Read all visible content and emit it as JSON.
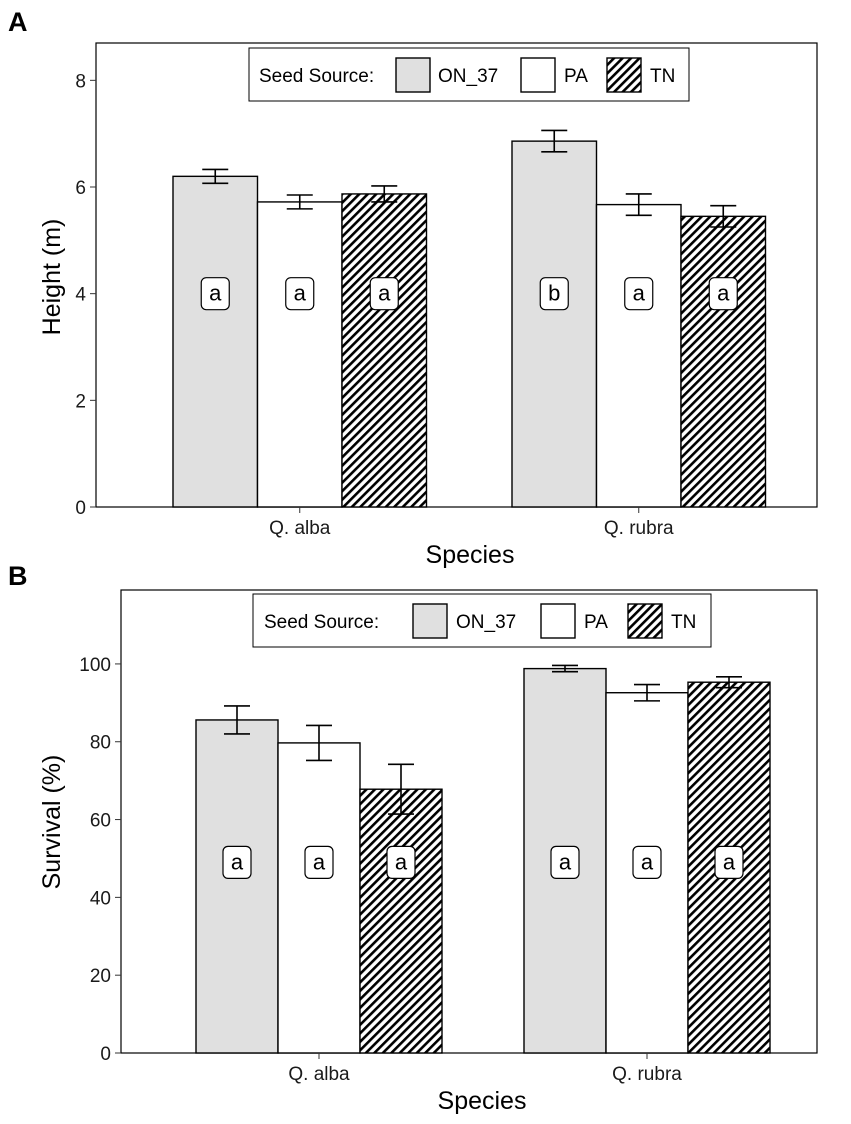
{
  "chart_data": [
    {
      "panel": "A",
      "type": "bar",
      "xlabel": "Species",
      "ylabel": "Height (m)",
      "ylim": [
        0,
        8.7
      ],
      "yticks": [
        "0",
        "2",
        "4",
        "6",
        "8"
      ],
      "letter_value": 4.0,
      "categories": [
        "Q. alba",
        "Q. rubra"
      ],
      "legend": {
        "title": "Seed Source:",
        "position": "top-center"
      },
      "series": [
        {
          "name": "ON_37",
          "fill": "#e0e0e0",
          "pattern": "none",
          "values": [
            6.2,
            6.86
          ],
          "errors": [
            0.13,
            0.2
          ],
          "letters": [
            "a",
            "b"
          ]
        },
        {
          "name": "PA",
          "fill": "#ffffff",
          "pattern": "none",
          "values": [
            5.72,
            5.67
          ],
          "errors": [
            0.13,
            0.2
          ],
          "letters": [
            "a",
            "a"
          ]
        },
        {
          "name": "TN",
          "fill": "#ffffff",
          "pattern": "hatch",
          "values": [
            5.87,
            5.45
          ],
          "errors": [
            0.15,
            0.2
          ],
          "letters": [
            "a",
            "a"
          ]
        }
      ]
    },
    {
      "panel": "B",
      "type": "bar",
      "xlabel": "Species",
      "ylabel": "Survival (%)",
      "ylim": [
        0,
        119
      ],
      "yticks": [
        "0",
        "20",
        "40",
        "60",
        "80",
        "100"
      ],
      "letter_value": 49,
      "categories": [
        "Q. alba",
        "Q. rubra"
      ],
      "legend": {
        "title": "Seed Source:",
        "position": "top-center"
      },
      "series": [
        {
          "name": "ON_37",
          "fill": "#e0e0e0",
          "pattern": "none",
          "values": [
            85.6,
            98.8
          ],
          "errors": [
            3.6,
            0.8
          ],
          "letters": [
            "a",
            "a"
          ]
        },
        {
          "name": "PA",
          "fill": "#ffffff",
          "pattern": "none",
          "values": [
            79.7,
            92.6
          ],
          "errors": [
            4.5,
            2.1
          ],
          "letters": [
            "a",
            "a"
          ]
        },
        {
          "name": "TN",
          "fill": "#ffffff",
          "pattern": "hatch",
          "values": [
            67.8,
            95.3
          ],
          "errors": [
            6.4,
            1.4
          ],
          "letters": [
            "a",
            "a"
          ]
        }
      ]
    }
  ]
}
